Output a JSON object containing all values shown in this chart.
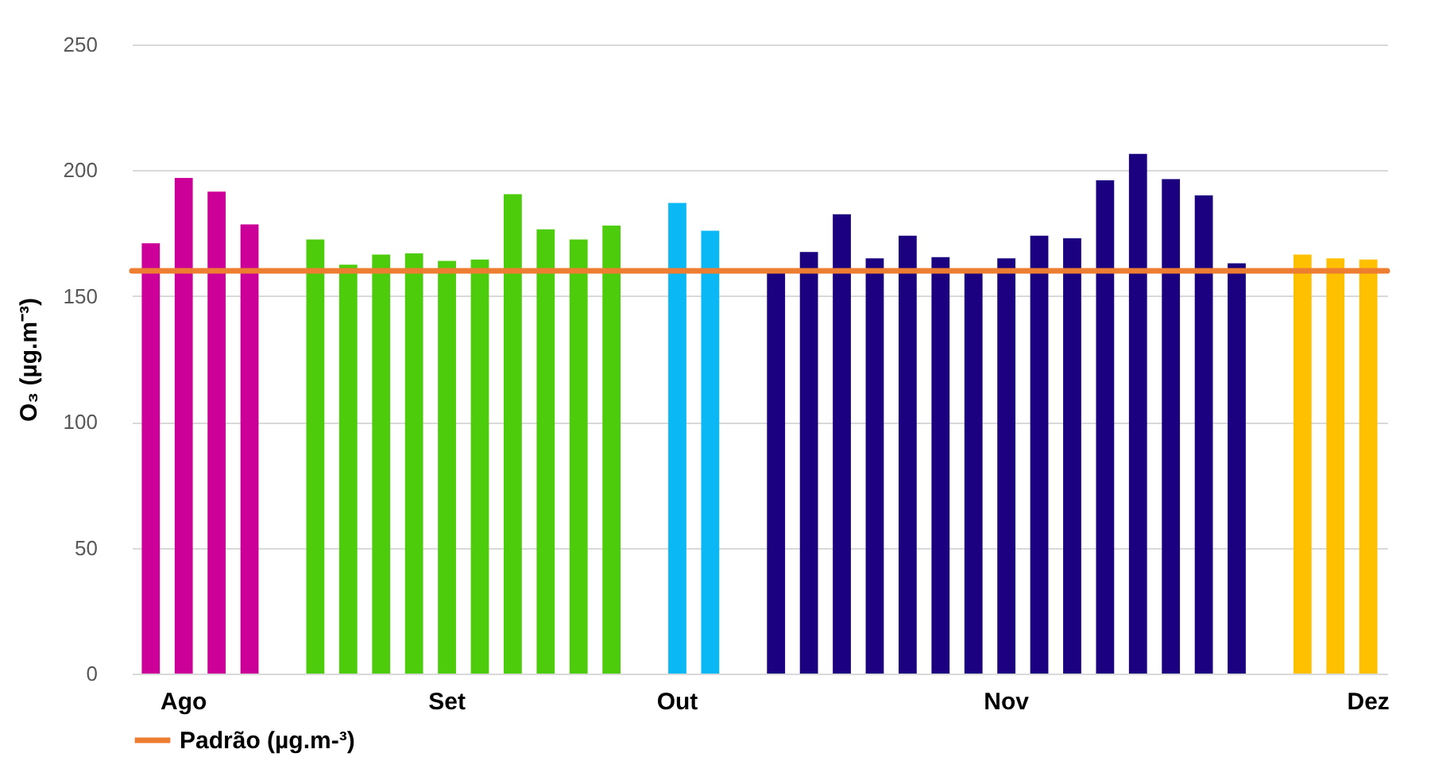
{
  "chart_data": {
    "type": "bar",
    "ylabel": "O₃ (µg.m⁻³)",
    "categories": [
      null,
      "Ago",
      null,
      null,
      null,
      null,
      null,
      null,
      null,
      "Set",
      null,
      null,
      null,
      null,
      null,
      null,
      "Out",
      null,
      null,
      null,
      null,
      null,
      null,
      null,
      null,
      null,
      "Nov",
      null,
      null,
      null,
      null,
      null,
      null,
      null,
      null,
      null,
      null,
      "Dez"
    ],
    "values": [
      171,
      197,
      191.5,
      178.5,
      null,
      172.5,
      162.5,
      166.5,
      167,
      164,
      164.5,
      190.5,
      176.5,
      172.5,
      178,
      null,
      187,
      176,
      null,
      160,
      167.5,
      182.5,
      165,
      174,
      165.5,
      160,
      165,
      174,
      173,
      196,
      206.5,
      196.5,
      190,
      163,
      null,
      166.5,
      165,
      164.5
    ],
    "colors": [
      "#cc0099",
      "#cc0099",
      "#cc0099",
      "#cc0099",
      null,
      "#4ccc0a",
      "#4ccc0a",
      "#4ccc0a",
      "#4ccc0a",
      "#4ccc0a",
      "#4ccc0a",
      "#4ccc0a",
      "#4ccc0a",
      "#4ccc0a",
      "#4ccc0a",
      null,
      "#0ab8f5",
      "#0ab8f5",
      null,
      "#1b0080",
      "#1b0080",
      "#1b0080",
      "#1b0080",
      "#1b0080",
      "#1b0080",
      "#1b0080",
      "#1b0080",
      "#1b0080",
      "#1b0080",
      "#1b0080",
      "#1b0080",
      "#1b0080",
      "#1b0080",
      "#1b0080",
      null,
      "#ffc000",
      "#ffc000",
      "#ffc000"
    ],
    "ylim": [
      0,
      250
    ],
    "yticks": [
      0,
      50,
      100,
      150,
      200,
      250
    ],
    "grid": "y",
    "legend": "bottom",
    "ref_lines": [
      {
        "axis": "y",
        "value": 160,
        "label": "Padrão (µg.m-³)",
        "color": "#ed7d31"
      }
    ]
  }
}
